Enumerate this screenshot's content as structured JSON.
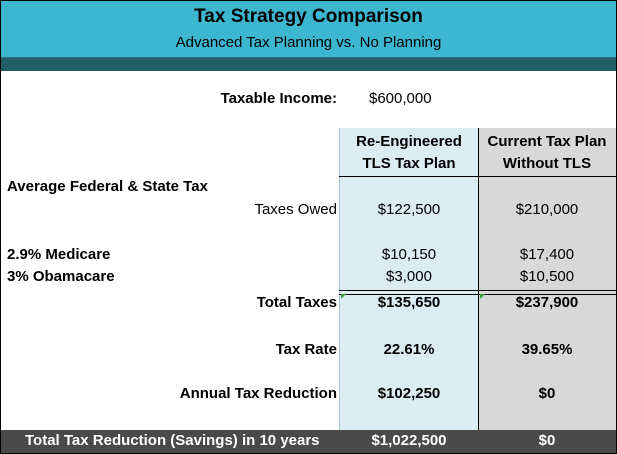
{
  "header": {
    "title": "Tax Strategy Comparison",
    "subtitle": "Advanced Tax Planning vs. No Planning"
  },
  "income": {
    "label": "Taxable Income:",
    "value": "$600,000"
  },
  "columns": {
    "plan_a_line1": "Re-Engineered",
    "plan_a_line2": "TLS Tax Plan",
    "plan_b_line1": "Current Tax Plan",
    "plan_b_line2": "Without TLS"
  },
  "sections": {
    "federal_state": "Average Federal & State Tax"
  },
  "rows": {
    "taxes_owed": {
      "label": "Taxes Owed",
      "a": "$122,500",
      "b": "$210,000"
    },
    "medicare": {
      "label": "2.9% Medicare",
      "a": "$10,150",
      "b": "$17,400"
    },
    "obamacare": {
      "label": "3% Obamacare",
      "a": "$3,000",
      "b": "$10,500"
    },
    "total_taxes": {
      "label": "Total Taxes",
      "a": "$135,650",
      "b": "$237,900"
    },
    "tax_rate": {
      "label": "Tax Rate",
      "a": "22.61%",
      "b": "39.65%"
    },
    "annual_reduction": {
      "label": "Annual Tax Reduction",
      "a": "$102,250",
      "b": "$0"
    }
  },
  "footer": {
    "label": "Total Tax Reduction (Savings) in 10 years",
    "a": "$1,022,500",
    "b": "$0"
  },
  "colors": {
    "banner": "#3db7cf",
    "strip": "#235d68",
    "plan_a_bg": "#dcecf3",
    "plan_b_bg": "#d8d8d8",
    "footer_bg": "#4a4a4a"
  }
}
